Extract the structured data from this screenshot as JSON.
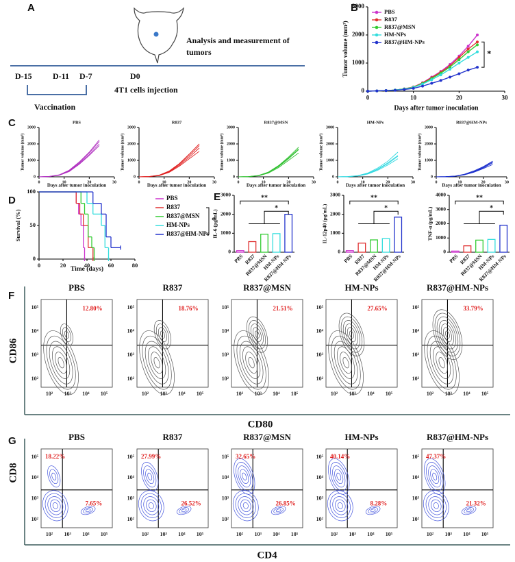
{
  "panel_labels": [
    "A",
    "B",
    "C",
    "D",
    "E",
    "F",
    "G"
  ],
  "schematic": {
    "caption": [
      "Analysis and measurement of",
      "tumors"
    ],
    "timepoints": [
      "D-15",
      "D-11",
      "D-7",
      "D0"
    ],
    "injection": "4T1 cells injection",
    "vaccination": "Vaccination"
  },
  "chart_data": [
    {
      "type": "line",
      "x": [
        0,
        2,
        4,
        6,
        8,
        10,
        12,
        14,
        16,
        18,
        20,
        22,
        24
      ],
      "xlim": [
        0,
        30
      ],
      "xticks": [
        0,
        10,
        20,
        30
      ],
      "ylim": [
        0,
        3000
      ],
      "yticks": [
        0,
        1000,
        2000,
        3000
      ],
      "y_label": "Tumor volume (mm³)",
      "x_label": "Days after tumor inoculation",
      "legend": "upper left",
      "markers": true,
      "annotations": [
        "*"
      ],
      "series": [
        {
          "name": "PBS",
          "color": "#cc33cc",
          "values": [
            0,
            10,
            20,
            40,
            80,
            150,
            300,
            500,
            700,
            950,
            1250,
            1600,
            2000
          ]
        },
        {
          "name": "R837",
          "color": "#e03030",
          "values": [
            0,
            10,
            20,
            40,
            80,
            150,
            290,
            480,
            680,
            900,
            1200,
            1500,
            1750
          ]
        },
        {
          "name": "R837@MSN",
          "color": "#33cc33",
          "values": [
            0,
            10,
            20,
            40,
            80,
            140,
            270,
            450,
            640,
            860,
            1120,
            1400,
            1650
          ]
        },
        {
          "name": "HM-NPs",
          "color": "#33dddd",
          "values": [
            0,
            10,
            20,
            40,
            70,
            130,
            250,
            410,
            580,
            780,
            1000,
            1200,
            1400
          ]
        },
        {
          "name": "R837@HM-NPs",
          "color": "#2233cc",
          "values": [
            0,
            10,
            20,
            30,
            60,
            100,
            180,
            280,
            380,
            500,
            620,
            750,
            850
          ]
        }
      ]
    },
    {
      "type": "line",
      "title": "PBS",
      "x": [
        0,
        4,
        8,
        12,
        16,
        20,
        24
      ],
      "xlim": [
        0,
        30
      ],
      "xticks": [
        0,
        10,
        20,
        30
      ],
      "ylim": [
        0,
        3000
      ],
      "yticks": [
        0,
        1000,
        2000,
        3000
      ],
      "y_label": "Tumor volume (mm³)",
      "x_label": "Days after tumor inoculation",
      "markers": false,
      "series": [
        {
          "color": "#b030c0",
          "values": [
            0,
            20,
            100,
            350,
            800,
            1350,
            2000
          ]
        },
        {
          "color": "#b030c0",
          "values": [
            0,
            20,
            110,
            380,
            850,
            1450,
            2150
          ]
        },
        {
          "color": "#b030c0",
          "values": [
            0,
            15,
            90,
            320,
            760,
            1300,
            1900
          ]
        },
        {
          "color": "#b030c0",
          "values": [
            0,
            25,
            120,
            400,
            900,
            1500,
            2250
          ]
        }
      ]
    },
    {
      "type": "line",
      "title": "R837",
      "x": [
        0,
        4,
        8,
        12,
        16,
        20,
        24
      ],
      "xlim": [
        0,
        30
      ],
      "xticks": [
        0,
        10,
        20,
        30
      ],
      "ylim": [
        0,
        3000
      ],
      "yticks": [
        0,
        1000,
        2000,
        3000
      ],
      "y_label": "Tumor volume (mm³)",
      "x_label": "Days after tumor inoculation",
      "markers": false,
      "series": [
        {
          "color": "#e02020",
          "values": [
            0,
            15,
            80,
            300,
            700,
            1200,
            1750
          ]
        },
        {
          "color": "#e02020",
          "values": [
            0,
            20,
            90,
            330,
            760,
            1300,
            1900
          ]
        },
        {
          "color": "#e02020",
          "values": [
            0,
            15,
            70,
            270,
            640,
            1100,
            1550
          ]
        },
        {
          "color": "#e02020",
          "values": [
            0,
            20,
            100,
            350,
            800,
            1380,
            2000
          ]
        }
      ]
    },
    {
      "type": "line",
      "title": "R837@MSN",
      "x": [
        0,
        4,
        8,
        12,
        16,
        20,
        24
      ],
      "xlim": [
        0,
        30
      ],
      "xticks": [
        0,
        10,
        20,
        30
      ],
      "ylim": [
        0,
        3000
      ],
      "yticks": [
        0,
        1000,
        2000,
        3000
      ],
      "y_label": "Tumor volume (mm³)",
      "x_label": "Days after tumor inoculation",
      "markers": false,
      "series": [
        {
          "color": "#30c030",
          "values": [
            0,
            15,
            70,
            260,
            620,
            1100,
            1650
          ]
        },
        {
          "color": "#30c030",
          "values": [
            0,
            15,
            80,
            290,
            680,
            1200,
            1800
          ]
        },
        {
          "color": "#30c030",
          "values": [
            0,
            10,
            60,
            230,
            560,
            1000,
            1450
          ]
        },
        {
          "color": "#30c030",
          "values": [
            0,
            15,
            75,
            270,
            650,
            1150,
            1700
          ]
        }
      ]
    },
    {
      "type": "line",
      "title": "HM-NPs",
      "x": [
        0,
        4,
        8,
        12,
        16,
        20,
        24
      ],
      "xlim": [
        0,
        30
      ],
      "xticks": [
        0,
        10,
        20,
        30
      ],
      "ylim": [
        0,
        3000
      ],
      "yticks": [
        0,
        1000,
        2000,
        3000
      ],
      "y_label": "Tumor volume (mm³)",
      "x_label": "Days after tumor inoculation",
      "markers": false,
      "series": [
        {
          "color": "#30d8e0",
          "values": [
            0,
            10,
            60,
            200,
            480,
            850,
            1300
          ]
        },
        {
          "color": "#30d8e0",
          "values": [
            0,
            15,
            70,
            230,
            540,
            950,
            1500
          ]
        },
        {
          "color": "#30d8e0",
          "values": [
            0,
            10,
            50,
            170,
            400,
            720,
            1100
          ]
        },
        {
          "color": "#30d8e0",
          "values": [
            0,
            10,
            55,
            190,
            450,
            800,
            1250
          ]
        }
      ]
    },
    {
      "type": "line",
      "title": "R837@HM-NPs",
      "x": [
        0,
        4,
        8,
        12,
        16,
        20,
        24
      ],
      "xlim": [
        0,
        30
      ],
      "xticks": [
        0,
        10,
        20,
        30
      ],
      "ylim": [
        0,
        3000
      ],
      "yticks": [
        0,
        1000,
        2000,
        3000
      ],
      "y_label": "Tumor volume (mm³)",
      "x_label": "Days after tumor inoculation",
      "markers": false,
      "series": [
        {
          "color": "#1a2ecc",
          "values": [
            0,
            10,
            40,
            140,
            320,
            580,
            900
          ]
        },
        {
          "color": "#1a2ecc",
          "values": [
            0,
            10,
            45,
            160,
            360,
            620,
            950
          ]
        },
        {
          "color": "#1a2ecc",
          "values": [
            0,
            8,
            35,
            120,
            280,
            500,
            750
          ]
        },
        {
          "color": "#1a2ecc",
          "values": [
            0,
            10,
            40,
            130,
            300,
            540,
            850
          ]
        }
      ]
    },
    {
      "type": "step",
      "xlim": [
        0,
        80
      ],
      "xticks": [
        0,
        20,
        40,
        60,
        80
      ],
      "ylim": [
        0,
        100
      ],
      "yticks": [
        0,
        50,
        100
      ],
      "y_label": "Survival (%)",
      "x_label": "Time (days)",
      "legend": "right",
      "annotations": [
        "*"
      ],
      "series": [
        {
          "name": "PBS",
          "color": "#cc33cc",
          "x": [
            0,
            29,
            31,
            33,
            35,
            37,
            38
          ],
          "values": [
            100,
            100,
            83,
            67,
            50,
            17,
            0
          ]
        },
        {
          "name": "R837",
          "color": "#e03030",
          "x": [
            0,
            31,
            34,
            37,
            41,
            45
          ],
          "values": [
            100,
            83,
            67,
            50,
            17,
            0
          ]
        },
        {
          "name": "R837@MSN",
          "color": "#33cc33",
          "x": [
            0,
            35,
            38,
            41,
            44,
            46
          ],
          "values": [
            100,
            83,
            67,
            33,
            17,
            0
          ]
        },
        {
          "name": "HM-NPs",
          "color": "#33dddd",
          "x": [
            0,
            40,
            45,
            52,
            55,
            58
          ],
          "values": [
            100,
            83,
            67,
            50,
            17,
            0
          ]
        },
        {
          "name": "R837@HM-NPs",
          "color": "#2233cc",
          "x": [
            0,
            45,
            52,
            56,
            60,
            68
          ],
          "values": [
            100,
            83,
            67,
            33,
            17,
            17
          ]
        }
      ]
    },
    {
      "type": "bar",
      "categories": [
        "PBS",
        "R837",
        "R837@MSN",
        "HM-NPs",
        "R837@HM-NPs"
      ],
      "values": [
        80,
        560,
        950,
        980,
        2000
      ],
      "colors": [
        "#cc33cc",
        "#e03030",
        "#33cc33",
        "#33dddd",
        "#2233cc"
      ],
      "ylim": [
        0,
        3000
      ],
      "yticks": [
        0,
        1000,
        2000,
        3000
      ],
      "y_label": "IL-6 (pg/mL)",
      "annotations": [
        "**",
        "*"
      ]
    },
    {
      "type": "bar",
      "categories": [
        "PBS",
        "R837",
        "R837@MSN",
        "HM-NPs",
        "R837@HM-NPs"
      ],
      "values": [
        80,
        480,
        650,
        720,
        1850
      ],
      "colors": [
        "#cc33cc",
        "#e03030",
        "#33cc33",
        "#33dddd",
        "#2233cc"
      ],
      "ylim": [
        0,
        3000
      ],
      "yticks": [
        0,
        1000,
        2000,
        3000
      ],
      "y_label": "IL-12p40 (pg/mL)",
      "annotations": [
        "**",
        "*"
      ]
    },
    {
      "type": "bar",
      "categories": [
        "PBS",
        "R837",
        "R837@MSN",
        "HM-NPs",
        "R837@HM-NPs"
      ],
      "values": [
        80,
        450,
        850,
        900,
        1900
      ],
      "colors": [
        "#cc33cc",
        "#e03030",
        "#33cc33",
        "#33dddd",
        "#2233cc"
      ],
      "ylim": [
        0,
        4000
      ],
      "yticks": [
        0,
        1000,
        2000,
        3000,
        4000
      ],
      "y_label": "TNF-α (pg/mL)",
      "annotations": [
        "**",
        "*"
      ]
    }
  ],
  "flow": [
    {
      "x_label": "CD80",
      "y_label": "CD86",
      "ticks": [
        "10²",
        "10³",
        "10⁴",
        "10⁵"
      ],
      "plots": [
        {
          "title": "PBS",
          "gates": [
            "12.80%"
          ]
        },
        {
          "title": "R837",
          "gates": [
            "18.76%"
          ]
        },
        {
          "title": "R837@MSN",
          "gates": [
            "21.51%"
          ]
        },
        {
          "title": "HM-NPs",
          "gates": [
            "27.65%"
          ]
        },
        {
          "title": "R837@HM-NPs",
          "gates": [
            "33.79%"
          ]
        }
      ]
    },
    {
      "x_label": "CD4",
      "y_label": "CD8",
      "ticks": [
        "10²",
        "10³",
        "10⁴",
        "10⁵"
      ],
      "plots": [
        {
          "title": "PBS",
          "gates": [
            "18.22%",
            "7.65%"
          ]
        },
        {
          "title": "R837",
          "gates": [
            "27.99%",
            "26.52%"
          ]
        },
        {
          "title": "R837@MSN",
          "gates": [
            "32.65%",
            "26.85%"
          ]
        },
        {
          "title": "HM-NPs",
          "gates": [
            "40.14%",
            "8.28%"
          ]
        },
        {
          "title": "R837@HM-NPs",
          "gates": [
            "47.37%",
            "21.32%"
          ]
        }
      ]
    }
  ]
}
